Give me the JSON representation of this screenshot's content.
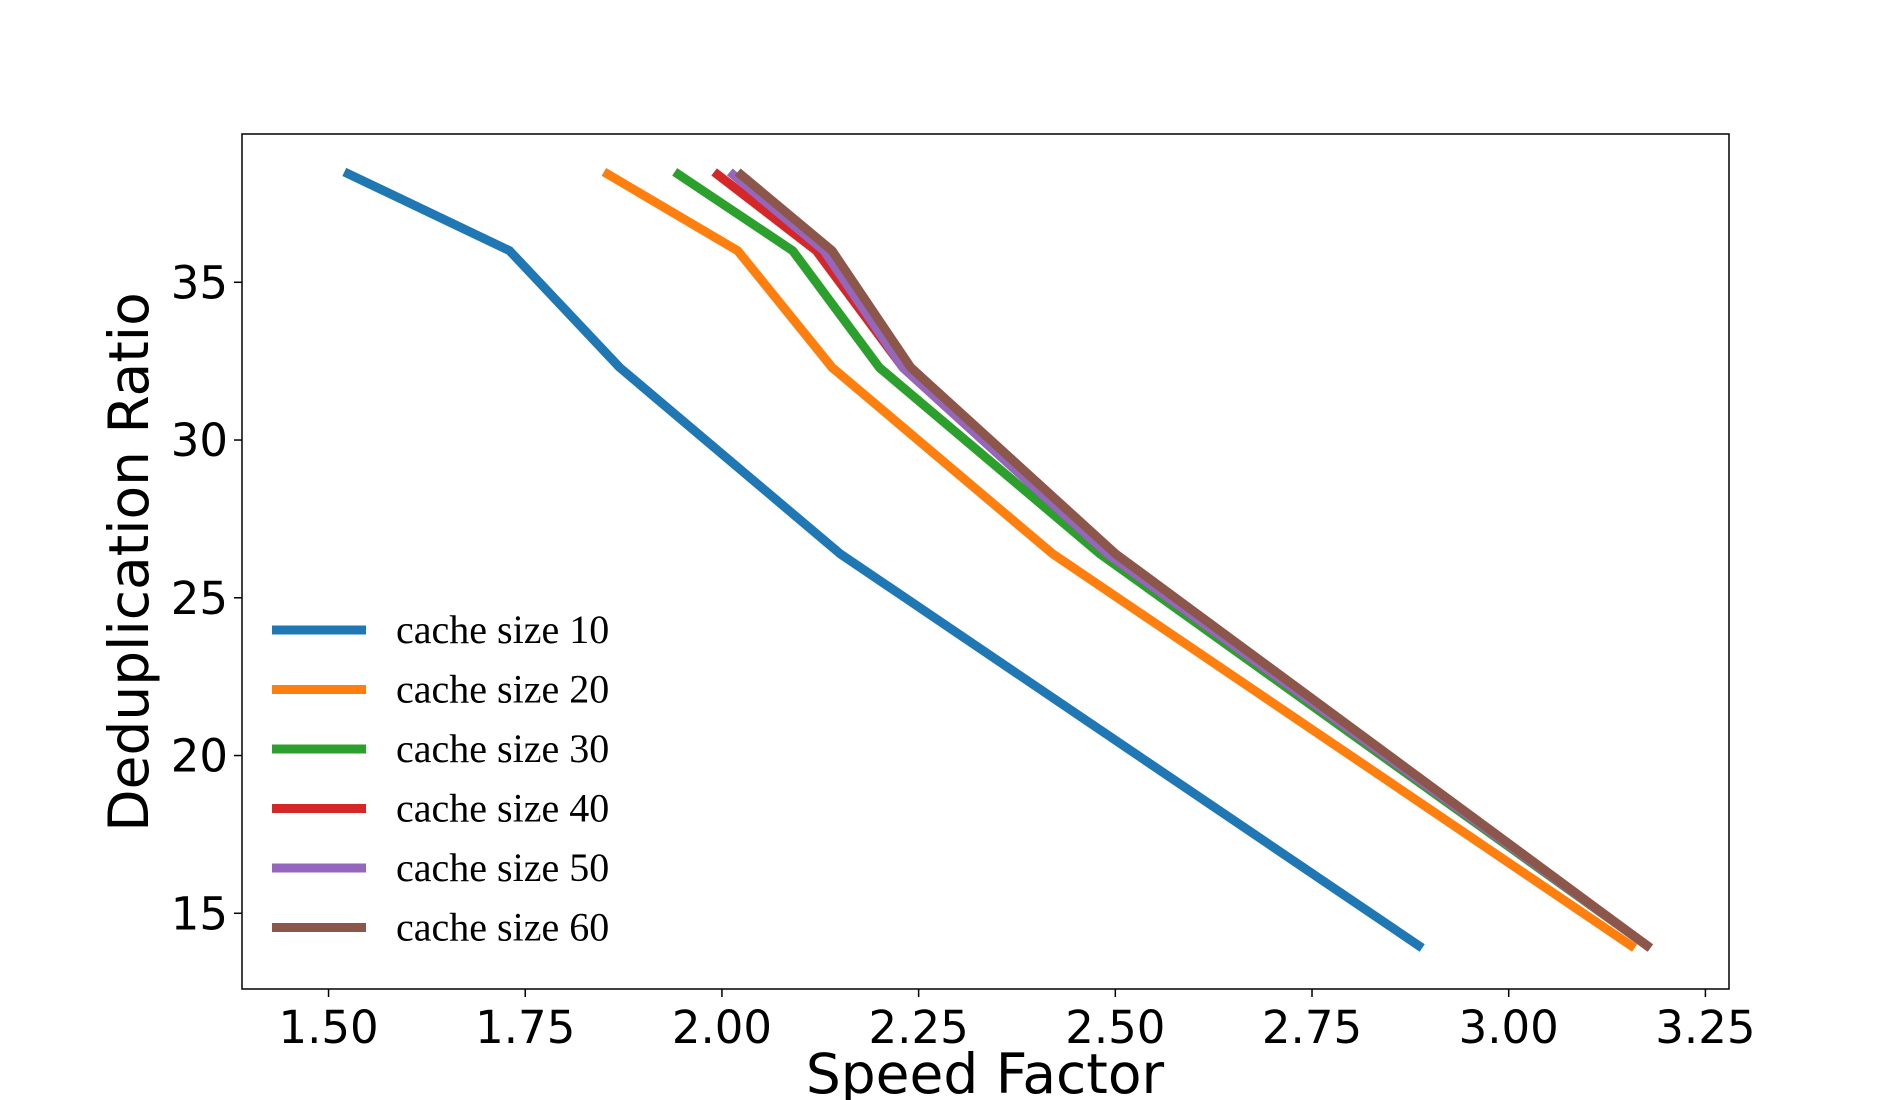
{
  "chart_data": {
    "type": "line",
    "title": "",
    "xlabel": "Speed Factor",
    "ylabel": "Deduplication Ratio",
    "xlim": [
      1.39,
      3.28
    ],
    "ylim": [
      12.6,
      39.7
    ],
    "xticks": [
      1.5,
      1.75,
      2.0,
      2.25,
      2.5,
      2.75,
      3.0,
      3.25
    ],
    "xtick_labels": [
      "1.50",
      "1.75",
      "2.00",
      "2.25",
      "2.50",
      "2.75",
      "3.00",
      "3.25"
    ],
    "yticks": [
      15,
      20,
      25,
      30,
      35
    ],
    "ytick_labels": [
      "15",
      "20",
      "25",
      "30",
      "35"
    ],
    "grid": false,
    "legend_position": "lower-left",
    "series": [
      {
        "name": "cache size 10",
        "color": "#1f77b4",
        "x": [
          1.52,
          1.73,
          1.87,
          2.15,
          2.89
        ],
        "y": [
          38.5,
          36.0,
          32.3,
          26.4,
          13.9
        ]
      },
      {
        "name": "cache size 20",
        "color": "#ff7f0e",
        "x": [
          1.85,
          2.02,
          2.14,
          2.42,
          3.16
        ],
        "y": [
          38.5,
          36.0,
          32.3,
          26.4,
          13.9
        ]
      },
      {
        "name": "cache size 30",
        "color": "#2ca02c",
        "x": [
          1.94,
          2.09,
          2.2,
          2.48,
          3.18
        ],
        "y": [
          38.5,
          36.0,
          32.3,
          26.4,
          13.9
        ]
      },
      {
        "name": "cache size 40",
        "color": "#d62728",
        "x": [
          1.99,
          2.12,
          2.23,
          2.49,
          3.18
        ],
        "y": [
          38.5,
          36.0,
          32.3,
          26.4,
          13.9
        ]
      },
      {
        "name": "cache size 50",
        "color": "#9467bd",
        "x": [
          2.01,
          2.13,
          2.23,
          2.49,
          3.18
        ],
        "y": [
          38.5,
          36.0,
          32.3,
          26.4,
          13.9
        ]
      },
      {
        "name": "cache size 60",
        "color": "#8c564b",
        "x": [
          2.02,
          2.14,
          2.24,
          2.5,
          3.18
        ],
        "y": [
          38.5,
          36.0,
          32.3,
          26.4,
          13.9
        ]
      }
    ]
  }
}
